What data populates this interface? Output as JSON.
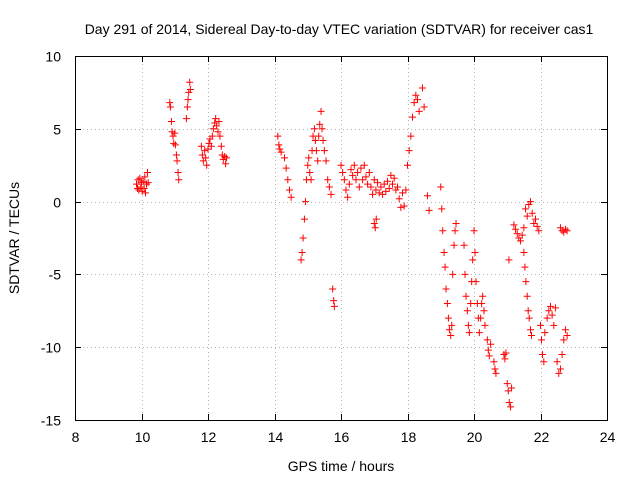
{
  "chart_data": {
    "type": "scatter",
    "title": "Day 291 of 2014, Sidereal Day-to-day VTEC variation (SDTVAR) for receiver cas1",
    "xlabel": "GPS time / hours",
    "ylabel": "SDTVAR / TECUs",
    "xlim": [
      8,
      24
    ],
    "ylim": [
      -15,
      10
    ],
    "xticks": [
      8,
      10,
      12,
      14,
      16,
      18,
      20,
      22,
      24
    ],
    "yticks": [
      -15,
      -10,
      -5,
      0,
      5,
      10
    ],
    "x_tick_labels": [
      "8",
      "10",
      "12",
      "14",
      "16",
      "18",
      "20",
      "22",
      "24"
    ],
    "y_tick_labels": [
      "-15",
      "-10",
      "-5",
      "0",
      "5",
      "10"
    ],
    "grid": true,
    "legend": "none",
    "marker": "+",
    "color": "#ff0000",
    "series": [
      {
        "name": "SDTVAR",
        "points": [
          [
            9.85,
            1.2
          ],
          [
            9.88,
            0.9
          ],
          [
            9.9,
            1.5
          ],
          [
            9.92,
            0.8
          ],
          [
            9.95,
            1.6
          ],
          [
            9.98,
            1.0
          ],
          [
            10.0,
            1.3
          ],
          [
            10.02,
            0.7
          ],
          [
            10.05,
            1.4
          ],
          [
            10.08,
            0.9
          ],
          [
            10.1,
            1.7
          ],
          [
            10.12,
            0.6
          ],
          [
            10.15,
            1.2
          ],
          [
            10.18,
            2.0
          ],
          [
            10.2,
            1.3
          ],
          [
            10.85,
            6.8
          ],
          [
            10.87,
            6.5
          ],
          [
            10.9,
            5.5
          ],
          [
            10.92,
            4.8
          ],
          [
            10.95,
            4.5
          ],
          [
            10.97,
            4.0
          ],
          [
            11.0,
            4.7
          ],
          [
            11.02,
            3.9
          ],
          [
            11.05,
            3.2
          ],
          [
            11.07,
            2.8
          ],
          [
            11.1,
            2.0
          ],
          [
            11.12,
            1.5
          ],
          [
            11.35,
            5.7
          ],
          [
            11.38,
            6.5
          ],
          [
            11.4,
            7.0
          ],
          [
            11.42,
            7.5
          ],
          [
            11.45,
            8.2
          ],
          [
            11.47,
            7.7
          ],
          [
            11.8,
            3.8
          ],
          [
            11.83,
            3.2
          ],
          [
            11.86,
            2.8
          ],
          [
            11.9,
            3.5
          ],
          [
            11.93,
            3.0
          ],
          [
            11.96,
            2.5
          ],
          [
            12.0,
            3.6
          ],
          [
            12.03,
            4.0
          ],
          [
            12.06,
            4.3
          ],
          [
            12.1,
            3.8
          ],
          [
            12.13,
            4.5
          ],
          [
            12.16,
            5.0
          ],
          [
            12.2,
            5.4
          ],
          [
            12.23,
            5.7
          ],
          [
            12.26,
            5.2
          ],
          [
            12.3,
            4.8
          ],
          [
            12.33,
            5.5
          ],
          [
            12.36,
            4.5
          ],
          [
            12.4,
            3.8
          ],
          [
            12.43,
            3.2
          ],
          [
            12.46,
            2.9
          ],
          [
            12.5,
            3.1
          ],
          [
            12.53,
            2.6
          ],
          [
            12.56,
            3.0
          ],
          [
            14.1,
            4.5
          ],
          [
            14.13,
            3.9
          ],
          [
            14.16,
            3.6
          ],
          [
            14.2,
            3.4
          ],
          [
            14.3,
            3.0
          ],
          [
            14.35,
            2.3
          ],
          [
            14.4,
            1.5
          ],
          [
            14.45,
            0.8
          ],
          [
            14.5,
            0.3
          ],
          [
            14.8,
            -4.0
          ],
          [
            14.83,
            -3.5
          ],
          [
            14.86,
            -2.5
          ],
          [
            14.9,
            -1.2
          ],
          [
            14.93,
            0.0
          ],
          [
            14.96,
            1.5
          ],
          [
            15.0,
            2.5
          ],
          [
            15.03,
            3.0
          ],
          [
            15.06,
            2.0
          ],
          [
            15.1,
            1.5
          ],
          [
            15.13,
            3.5
          ],
          [
            15.16,
            4.5
          ],
          [
            15.2,
            5.0
          ],
          [
            15.23,
            4.2
          ],
          [
            15.26,
            3.5
          ],
          [
            15.3,
            2.8
          ],
          [
            15.33,
            4.5
          ],
          [
            15.36,
            5.3
          ],
          [
            15.4,
            6.2
          ],
          [
            15.43,
            5.0
          ],
          [
            15.46,
            4.2
          ],
          [
            15.5,
            3.5
          ],
          [
            15.55,
            2.8
          ],
          [
            15.6,
            1.5
          ],
          [
            15.65,
            1.0
          ],
          [
            15.7,
            0.5
          ],
          [
            15.75,
            -6.0
          ],
          [
            15.78,
            -6.8
          ],
          [
            15.8,
            -7.2
          ],
          [
            16.0,
            2.5
          ],
          [
            16.05,
            2.0
          ],
          [
            16.1,
            1.5
          ],
          [
            16.15,
            0.8
          ],
          [
            16.2,
            0.3
          ],
          [
            16.25,
            1.2
          ],
          [
            16.3,
            2.2
          ],
          [
            16.35,
            1.8
          ],
          [
            16.4,
            2.5
          ],
          [
            16.45,
            1.5
          ],
          [
            16.5,
            2.0
          ],
          [
            16.55,
            1.0
          ],
          [
            16.6,
            2.3
          ],
          [
            16.65,
            1.5
          ],
          [
            16.7,
            2.5
          ],
          [
            16.75,
            1.7
          ],
          [
            16.8,
            1.2
          ],
          [
            16.85,
            2.0
          ],
          [
            16.9,
            1.0
          ],
          [
            16.95,
            0.5
          ],
          [
            17.0,
            1.5
          ],
          [
            17.05,
            0.8
          ],
          [
            17.1,
            1.3
          ],
          [
            17.15,
            0.6
          ],
          [
            17.2,
            1.0
          ],
          [
            17.25,
            0.5
          ],
          [
            17.3,
            1.2
          ],
          [
            17.35,
            0.7
          ],
          [
            17.4,
            1.4
          ],
          [
            17.45,
            0.9
          ],
          [
            17.5,
            1.8
          ],
          [
            17.55,
            1.2
          ],
          [
            17.6,
            1.6
          ],
          [
            17.65,
            0.8
          ],
          [
            17.7,
            1.0
          ],
          [
            17.75,
            0.2
          ],
          [
            17.8,
            -0.4
          ],
          [
            17.85,
            0.6
          ],
          [
            17.9,
            -0.3
          ],
          [
            17.95,
            0.8
          ],
          [
            17.0,
            -1.5
          ],
          [
            17.03,
            -1.8
          ],
          [
            17.06,
            -1.2
          ],
          [
            18.0,
            2.5
          ],
          [
            18.05,
            3.5
          ],
          [
            18.1,
            4.5
          ],
          [
            18.15,
            5.8
          ],
          [
            18.2,
            6.8
          ],
          [
            18.25,
            7.3
          ],
          [
            18.3,
            7.0
          ],
          [
            18.35,
            6.2
          ],
          [
            18.45,
            7.8
          ],
          [
            18.5,
            6.5
          ],
          [
            18.6,
            0.4
          ],
          [
            18.65,
            -0.6
          ],
          [
            19.0,
            1.0
          ],
          [
            19.03,
            -0.5
          ],
          [
            19.06,
            -2.0
          ],
          [
            19.1,
            -3.5
          ],
          [
            19.13,
            -4.5
          ],
          [
            19.16,
            -6.0
          ],
          [
            19.2,
            -7.0
          ],
          [
            19.23,
            -8.0
          ],
          [
            19.26,
            -8.8
          ],
          [
            19.3,
            -9.2
          ],
          [
            19.33,
            -8.5
          ],
          [
            19.36,
            -5.0
          ],
          [
            19.4,
            -3.0
          ],
          [
            19.43,
            -2.0
          ],
          [
            19.46,
            -1.5
          ],
          [
            19.7,
            -3.0
          ],
          [
            19.73,
            -5.0
          ],
          [
            19.76,
            -6.5
          ],
          [
            19.8,
            -7.5
          ],
          [
            19.83,
            -8.5
          ],
          [
            19.86,
            -9.0
          ],
          [
            19.9,
            -7.0
          ],
          [
            19.93,
            -5.5
          ],
          [
            19.96,
            -4.0
          ],
          [
            20.0,
            -2.0
          ],
          [
            20.03,
            -3.5
          ],
          [
            20.06,
            -5.5
          ],
          [
            20.1,
            -7.0
          ],
          [
            20.13,
            -8.0
          ],
          [
            20.16,
            -9.0
          ],
          [
            20.2,
            -8.0
          ],
          [
            20.23,
            -7.0
          ],
          [
            20.26,
            -6.5
          ],
          [
            20.3,
            -7.5
          ],
          [
            20.33,
            -8.5
          ],
          [
            20.4,
            -9.5
          ],
          [
            20.43,
            -10.2
          ],
          [
            20.46,
            -10.6
          ],
          [
            20.5,
            -9.8
          ],
          [
            20.6,
            -11.0
          ],
          [
            20.63,
            -11.5
          ],
          [
            20.66,
            -11.8
          ],
          [
            20.9,
            -10.5
          ],
          [
            20.93,
            -10.8
          ],
          [
            20.96,
            -10.4
          ],
          [
            21.0,
            -12.5
          ],
          [
            21.03,
            -13.0
          ],
          [
            21.06,
            -13.8
          ],
          [
            21.1,
            -14.1
          ],
          [
            21.13,
            -12.8
          ],
          [
            21.05,
            -4.0
          ],
          [
            21.2,
            -1.6
          ],
          [
            21.25,
            -1.9
          ],
          [
            21.3,
            -2.2
          ],
          [
            21.35,
            -2.5
          ],
          [
            21.4,
            -2.7
          ],
          [
            21.45,
            -2.3
          ],
          [
            21.5,
            -1.8
          ],
          [
            21.5,
            -3.5
          ],
          [
            21.53,
            -4.5
          ],
          [
            21.56,
            -5.5
          ],
          [
            21.6,
            -6.5
          ],
          [
            21.63,
            -7.5
          ],
          [
            21.66,
            -8.0
          ],
          [
            21.7,
            -8.8
          ],
          [
            21.73,
            -9.2
          ],
          [
            21.55,
            -0.5
          ],
          [
            21.6,
            -1.0
          ],
          [
            21.65,
            -0.2
          ],
          [
            21.7,
            0.0
          ],
          [
            21.75,
            -0.8
          ],
          [
            21.8,
            -1.5
          ],
          [
            21.85,
            -1.2
          ],
          [
            21.9,
            -1.7
          ],
          [
            21.95,
            -2.0
          ],
          [
            22.0,
            -8.5
          ],
          [
            22.03,
            -9.5
          ],
          [
            22.06,
            -10.5
          ],
          [
            22.1,
            -11.0
          ],
          [
            22.13,
            -9.0
          ],
          [
            22.2,
            -8.0
          ],
          [
            22.25,
            -7.5
          ],
          [
            22.3,
            -7.2
          ],
          [
            22.35,
            -7.8
          ],
          [
            22.4,
            -8.5
          ],
          [
            22.45,
            -7.3
          ],
          [
            22.5,
            -11.0
          ],
          [
            22.55,
            -11.8
          ],
          [
            22.6,
            -11.5
          ],
          [
            22.65,
            -10.5
          ],
          [
            22.7,
            -9.5
          ],
          [
            22.75,
            -8.8
          ],
          [
            22.8,
            -9.2
          ],
          [
            22.6,
            -1.8
          ],
          [
            22.65,
            -2.0
          ],
          [
            22.7,
            -2.1
          ],
          [
            22.75,
            -1.9
          ],
          [
            22.8,
            -2.0
          ]
        ]
      }
    ]
  }
}
